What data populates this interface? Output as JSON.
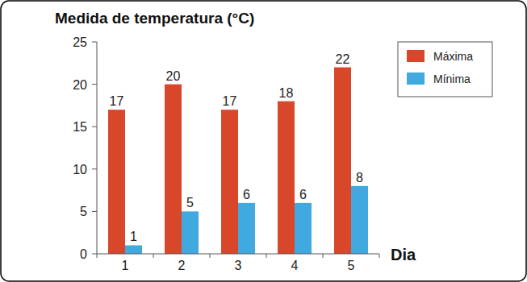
{
  "chart_data": {
    "type": "bar",
    "title": "Medida de temperatura (°C)",
    "x_label": "Dia",
    "categories": [
      "1",
      "2",
      "3",
      "4",
      "5"
    ],
    "series": [
      {
        "name": "Máxima",
        "color": "#d9472b",
        "values": [
          17,
          20,
          17,
          18,
          22
        ]
      },
      {
        "name": "Mínima",
        "color": "#3fa9e0",
        "values": [
          1,
          5,
          6,
          6,
          8
        ]
      }
    ],
    "ylim": [
      0,
      25
    ],
    "yticks": [
      0,
      5,
      10,
      15,
      20,
      25
    ],
    "grid": false,
    "legend": "upper right",
    "data_labels": true
  }
}
